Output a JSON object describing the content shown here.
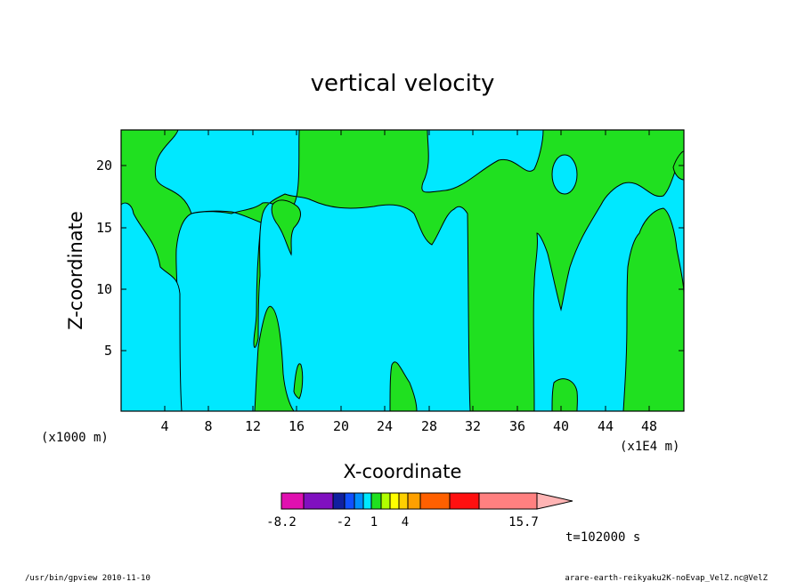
{
  "chart_data": {
    "type": "heatmap",
    "title": "vertical velocity",
    "xlabel": "X-coordinate",
    "ylabel": "Z-coordinate",
    "x_unit_left": "(x1000 m)",
    "x_unit_right": "(x1E4 m)",
    "xlim": [
      0,
      51
    ],
    "ylim": [
      0,
      23
    ],
    "x_ticks": [
      "4",
      "8",
      "12",
      "16",
      "20",
      "24",
      "28",
      "32",
      "36",
      "40",
      "44",
      "48"
    ],
    "y_ticks": [
      "5",
      "10",
      "15",
      "20"
    ],
    "regions_note": "cyan = negative/weak vertical velocity, green = 1 to 2 range",
    "colorbar": {
      "labels": [
        "-8.2",
        "-2",
        "1",
        "4",
        "15.7"
      ],
      "colors": [
        "#e010b0",
        "#8010c0",
        "#1020a0",
        "#1050ff",
        "#0090ff",
        "#00e8ff",
        "#20e020",
        "#b0ff00",
        "#ffff00",
        "#ffd000",
        "#ffa000",
        "#ff6000",
        "#ff1010",
        "#ff8080",
        "#ffb4b4"
      ]
    },
    "time_label": "t=102000 s"
  },
  "footer": {
    "left": "/usr/bin/gpview  2010-11-10",
    "right": "arare-earth-reikyaku2K-noEvap_VelZ.nc@VelZ"
  }
}
